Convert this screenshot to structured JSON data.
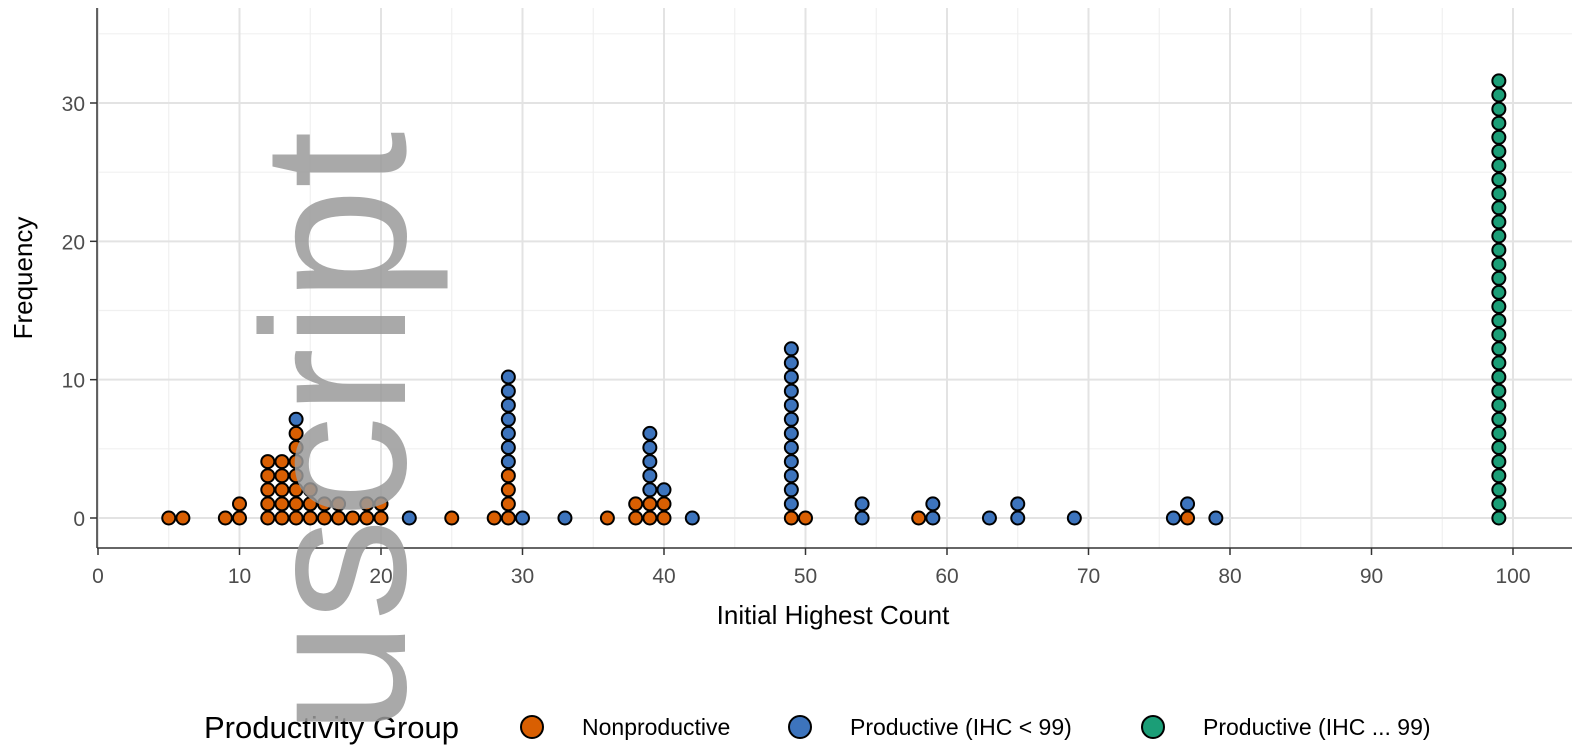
{
  "chart_data": {
    "type": "scatter",
    "style": "dotplot",
    "xlabel": "Initial Highest Count",
    "ylabel": "Frequency",
    "xlim": [
      0,
      104
    ],
    "ylim": [
      -1.5,
      36
    ],
    "xticks": [
      0,
      10,
      20,
      30,
      40,
      50,
      60,
      70,
      80,
      90,
      100
    ],
    "yticks": [
      0,
      10,
      20,
      30
    ],
    "grid": true,
    "legend": {
      "title": "Productivity Group",
      "position": "bottom",
      "entries": [
        "Nonproductive",
        "Productive (IHC < 99)",
        "Productive (IHC ... 99)"
      ]
    },
    "colors": {
      "Nonproductive": "#d95f02",
      "Productive (IHC < 99)": "#3d74bd",
      "Productive (IHC ... 99)": "#1b9e77"
    },
    "series": [
      {
        "name": "Nonproductive",
        "points": [
          [
            5,
            1
          ],
          [
            6,
            1
          ],
          [
            9,
            1
          ],
          [
            10,
            2
          ],
          [
            12,
            5
          ],
          [
            13,
            5
          ],
          [
            14,
            7
          ],
          [
            15,
            3
          ],
          [
            16,
            2
          ],
          [
            17,
            2
          ],
          [
            18,
            1
          ],
          [
            19,
            2
          ],
          [
            20,
            2
          ],
          [
            25,
            1
          ],
          [
            28,
            1
          ],
          [
            29,
            4
          ],
          [
            36,
            1
          ],
          [
            38,
            2
          ],
          [
            39,
            2
          ],
          [
            40,
            2
          ],
          [
            49,
            1
          ],
          [
            50,
            1
          ],
          [
            58,
            1
          ],
          [
            77,
            1
          ]
        ]
      },
      {
        "name": "Productive (IHC < 99)",
        "points": [
          [
            14,
            1
          ],
          [
            22,
            1
          ],
          [
            29,
            7
          ],
          [
            30,
            1
          ],
          [
            33,
            1
          ],
          [
            39,
            5
          ],
          [
            40,
            1
          ],
          [
            42,
            1
          ],
          [
            49,
            12
          ],
          [
            54,
            2
          ],
          [
            59,
            2
          ],
          [
            63,
            1
          ],
          [
            65,
            2
          ],
          [
            69,
            1
          ],
          [
            76,
            1
          ],
          [
            77,
            1
          ],
          [
            79,
            1
          ]
        ]
      },
      {
        "name": "Productive (IHC ... 99)",
        "points": [
          [
            99,
            32
          ]
        ]
      }
    ]
  },
  "watermark": "uscript"
}
